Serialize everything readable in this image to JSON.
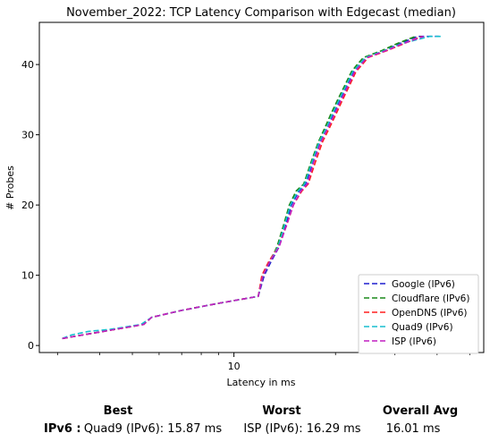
{
  "chart_data": {
    "type": "line",
    "title": "November_2022: TCP Latency Comparison with Edgecast (median)",
    "xlabel": "Latency in ms",
    "ylabel": "# Probes",
    "xscale": "log",
    "xlim": [
      2.65,
      55
    ],
    "ylim": [
      -1,
      46
    ],
    "xticks": [
      {
        "value": 10,
        "label": "10"
      }
    ],
    "yticks": [
      0,
      10,
      20,
      30,
      40
    ],
    "grid": false,
    "legend_position": "lower-right",
    "series": [
      {
        "name": "Google (IPv6)",
        "color": "#1f1fcf",
        "dash": "dashed",
        "points": [
          [
            3.1,
            1
          ],
          [
            5.4,
            3
          ],
          [
            5.7,
            4
          ],
          [
            7.0,
            5
          ],
          [
            9.0,
            6
          ],
          [
            11.8,
            7
          ],
          [
            12.3,
            10
          ],
          [
            12.9,
            12
          ],
          [
            13.6,
            14
          ],
          [
            14.2,
            17
          ],
          [
            14.8,
            20
          ],
          [
            15.6,
            22
          ],
          [
            16.3,
            23
          ],
          [
            17.1,
            26
          ],
          [
            18.0,
            29
          ],
          [
            18.9,
            31
          ],
          [
            19.7,
            33
          ],
          [
            20.6,
            35
          ],
          [
            21.6,
            37
          ],
          [
            22.6,
            39
          ],
          [
            23.6,
            40
          ],
          [
            24.6,
            41
          ],
          [
            28.0,
            42
          ],
          [
            31.0,
            43
          ],
          [
            35.0,
            44
          ],
          [
            40.5,
            44
          ]
        ]
      },
      {
        "name": "Cloudflare (IPv6)",
        "color": "#1a8a1a",
        "dash": "dashed",
        "points": [
          [
            3.1,
            1
          ],
          [
            5.4,
            3
          ],
          [
            5.7,
            4
          ],
          [
            7.0,
            5
          ],
          [
            9.0,
            6
          ],
          [
            11.8,
            7
          ],
          [
            12.2,
            10
          ],
          [
            12.8,
            12
          ],
          [
            13.4,
            14
          ],
          [
            14.0,
            17
          ],
          [
            14.6,
            20
          ],
          [
            15.3,
            22
          ],
          [
            16.1,
            23
          ],
          [
            16.9,
            26
          ],
          [
            17.8,
            29
          ],
          [
            18.6,
            31
          ],
          [
            19.4,
            33
          ],
          [
            20.3,
            35
          ],
          [
            21.3,
            37
          ],
          [
            22.3,
            39
          ],
          [
            23.2,
            40
          ],
          [
            24.2,
            41
          ],
          [
            27.5,
            42
          ],
          [
            30.5,
            43
          ],
          [
            34.5,
            44
          ]
        ]
      },
      {
        "name": "OpenDNS (IPv6)",
        "color": "#ff1f1f",
        "dash": "dashed",
        "points": [
          [
            3.1,
            1
          ],
          [
            5.4,
            3
          ],
          [
            5.7,
            4
          ],
          [
            7.0,
            5
          ],
          [
            9.0,
            6
          ],
          [
            11.8,
            7
          ],
          [
            12.1,
            10
          ],
          [
            12.7,
            12
          ],
          [
            13.5,
            14
          ],
          [
            14.3,
            17
          ],
          [
            15.0,
            20
          ],
          [
            15.9,
            22
          ],
          [
            16.6,
            23
          ],
          [
            17.4,
            26
          ],
          [
            18.3,
            29
          ],
          [
            19.2,
            31
          ],
          [
            20.1,
            33
          ],
          [
            21.0,
            35
          ],
          [
            22.0,
            37
          ],
          [
            23.0,
            39
          ],
          [
            24.0,
            40
          ],
          [
            25.0,
            41
          ],
          [
            28.5,
            42
          ],
          [
            32.0,
            43
          ],
          [
            36.0,
            44
          ]
        ]
      },
      {
        "name": "Quad9 (IPv6)",
        "color": "#17becf",
        "dash": "dashed",
        "points": [
          [
            3.1,
            1
          ],
          [
            3.3,
            1.5
          ],
          [
            3.7,
            2
          ],
          [
            4.3,
            2.3
          ],
          [
            5.3,
            3
          ],
          [
            5.7,
            4
          ],
          [
            7.0,
            5
          ],
          [
            9.0,
            6
          ],
          [
            11.8,
            7
          ],
          [
            12.2,
            10
          ],
          [
            12.8,
            12
          ],
          [
            13.5,
            14
          ],
          [
            14.1,
            17
          ],
          [
            14.7,
            20
          ],
          [
            15.5,
            22
          ],
          [
            16.2,
            23
          ],
          [
            17.0,
            26
          ],
          [
            17.9,
            29
          ],
          [
            18.8,
            31
          ],
          [
            19.6,
            33
          ],
          [
            20.5,
            35
          ],
          [
            21.5,
            37
          ],
          [
            22.5,
            39
          ],
          [
            23.5,
            40
          ],
          [
            24.5,
            41
          ],
          [
            28.0,
            42
          ],
          [
            31.5,
            43
          ],
          [
            38.0,
            44
          ],
          [
            41.0,
            44
          ]
        ]
      },
      {
        "name": "ISP (IPv6)",
        "color": "#c21fc2",
        "dash": "dashed",
        "points": [
          [
            3.1,
            1
          ],
          [
            5.4,
            3
          ],
          [
            5.7,
            4
          ],
          [
            7.0,
            5
          ],
          [
            9.0,
            6
          ],
          [
            11.8,
            7
          ],
          [
            12.2,
            10
          ],
          [
            12.8,
            12
          ],
          [
            13.6,
            14
          ],
          [
            14.3,
            17
          ],
          [
            15.0,
            20
          ],
          [
            15.8,
            22
          ],
          [
            16.5,
            23
          ],
          [
            17.2,
            26
          ],
          [
            18.1,
            29
          ],
          [
            19.0,
            31
          ],
          [
            19.9,
            33
          ],
          [
            20.8,
            35
          ],
          [
            21.8,
            37
          ],
          [
            22.8,
            39
          ],
          [
            23.8,
            40
          ],
          [
            24.8,
            41
          ],
          [
            28.3,
            42
          ],
          [
            31.8,
            43
          ],
          [
            36.5,
            44
          ]
        ]
      }
    ]
  },
  "summary": {
    "best_header": "Best",
    "worst_header": "Worst",
    "avg_header": "Overall Avg",
    "row_label": "IPv6 :",
    "best_value": "Quad9 (IPv6): 15.87 ms",
    "worst_value": "ISP (IPv6): 16.29 ms",
    "avg_value": "16.01 ms"
  }
}
